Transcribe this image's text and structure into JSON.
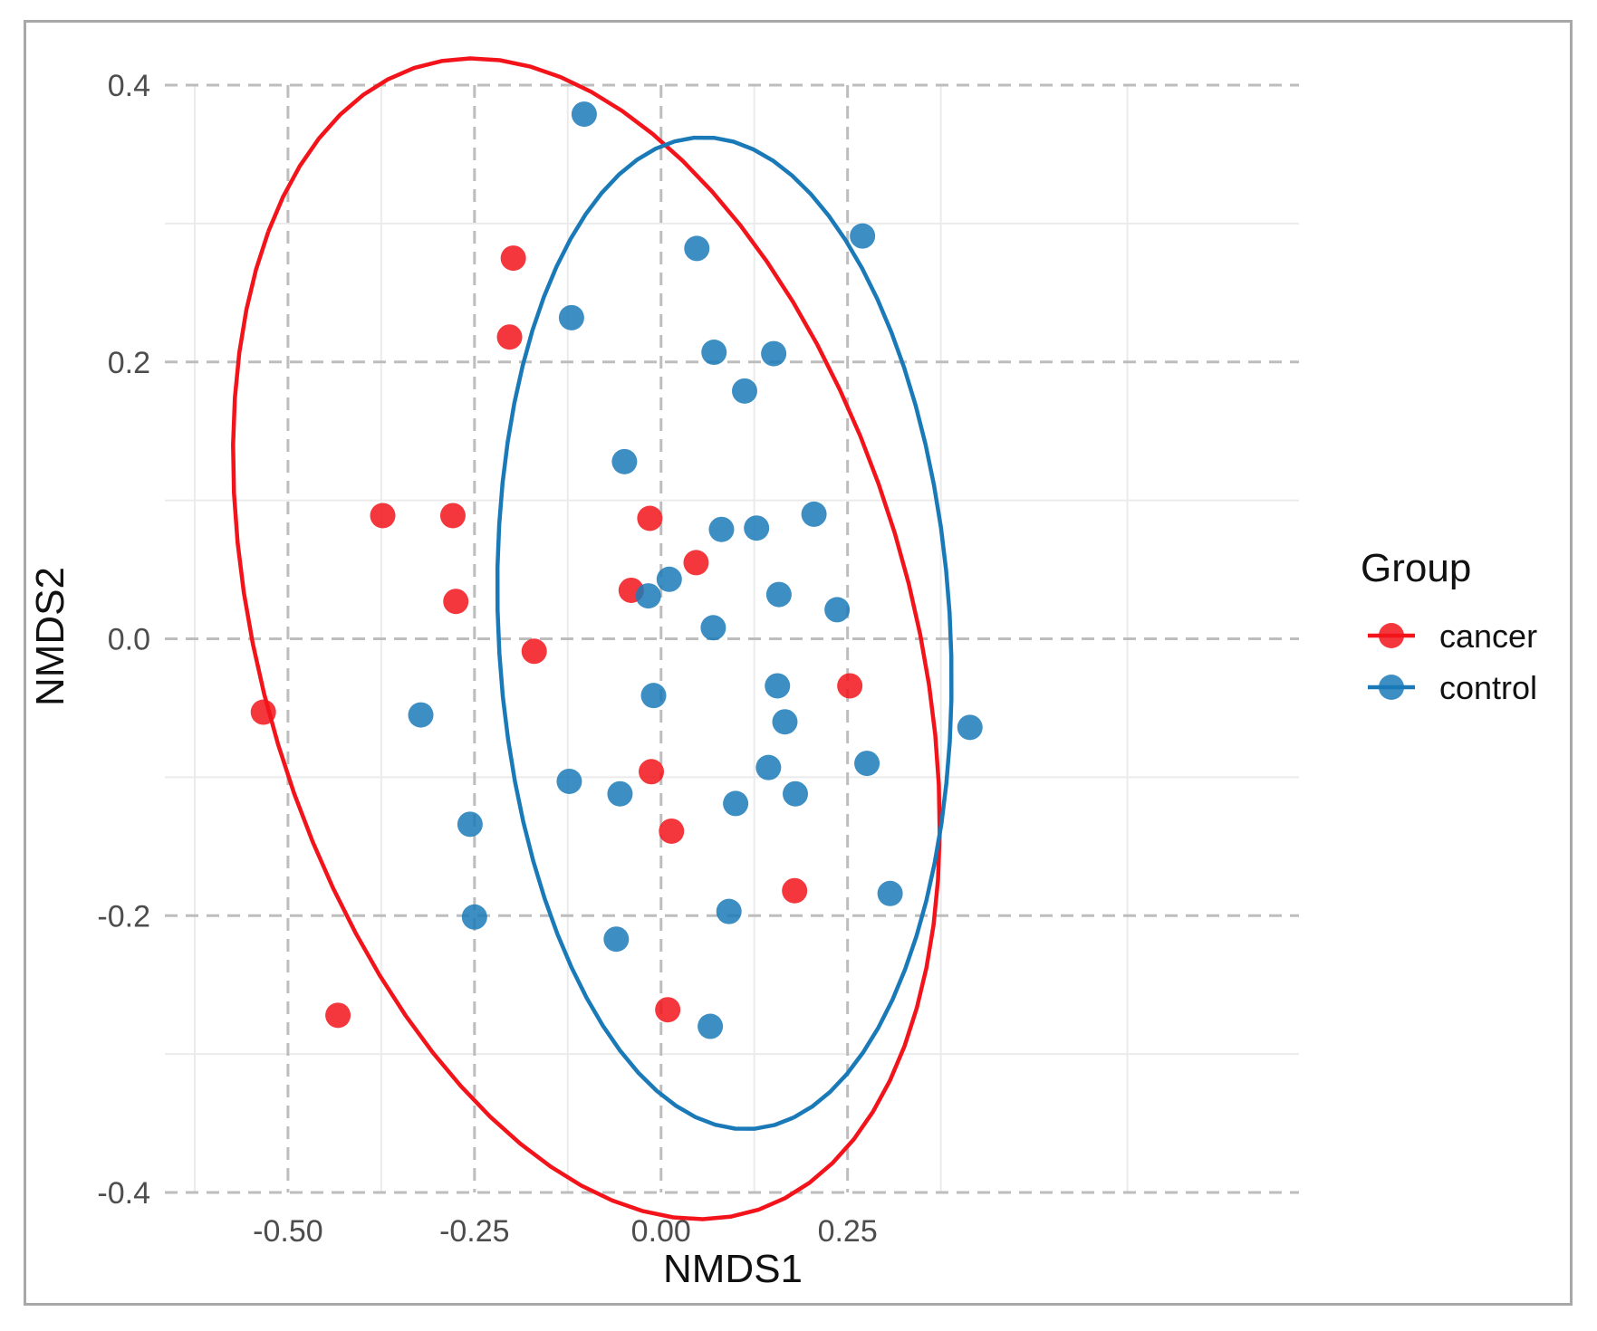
{
  "chart_data": {
    "type": "scatter",
    "title": "",
    "xlabel": "NMDS1",
    "ylabel": "NMDS2",
    "xlim": [
      -0.665,
      0.855
    ],
    "ylim": [
      -0.4,
      0.4
    ],
    "grid": true,
    "legend_title": "Group",
    "legend_position": "right",
    "x_ticks": [
      -0.5,
      -0.25,
      0.0,
      0.25
    ],
    "x_tick_labels": [
      "-0.50",
      "-0.25",
      "0.00",
      "0.25"
    ],
    "y_ticks": [
      0.4,
      0.2,
      0.0,
      -0.2,
      -0.4
    ],
    "y_tick_labels": [
      "0.4",
      "0.2",
      "0.0",
      "-0.2",
      "-0.4"
    ],
    "series": [
      {
        "name": "cancer",
        "color": "#f2141a",
        "points": [
          [
            -0.198,
            0.275
          ],
          [
            -0.203,
            0.218
          ],
          [
            -0.373,
            0.089
          ],
          [
            -0.279,
            0.089
          ],
          [
            -0.275,
            0.027
          ],
          [
            -0.17,
            -0.009
          ],
          [
            -0.533,
            -0.053
          ],
          [
            -0.433,
            -0.272
          ],
          [
            -0.015,
            0.087
          ],
          [
            0.047,
            0.055
          ],
          [
            -0.04,
            0.035
          ],
          [
            -0.013,
            -0.096
          ],
          [
            0.014,
            -0.139
          ],
          [
            0.009,
            -0.268
          ],
          [
            0.179,
            -0.182
          ],
          [
            0.253,
            -0.034
          ]
        ],
        "ellipse": {
          "center": [
            -0.1,
            0.0
          ],
          "semi_axes": [
            0.518,
            0.363
          ],
          "rotation_deg": 145.4
        }
      },
      {
        "name": "control",
        "color": "#1a7ab8",
        "points": [
          [
            -0.103,
            0.379
          ],
          [
            0.27,
            0.291
          ],
          [
            0.048,
            0.282
          ],
          [
            -0.12,
            0.232
          ],
          [
            0.071,
            0.207
          ],
          [
            0.151,
            0.206
          ],
          [
            0.112,
            0.179
          ],
          [
            -0.049,
            0.128
          ],
          [
            0.205,
            0.09
          ],
          [
            0.081,
            0.079
          ],
          [
            0.128,
            0.08
          ],
          [
            0.011,
            0.043
          ],
          [
            -0.017,
            0.031
          ],
          [
            0.158,
            0.032
          ],
          [
            0.236,
            0.021
          ],
          [
            0.07,
            0.008
          ],
          [
            0.156,
            -0.034
          ],
          [
            -0.01,
            -0.041
          ],
          [
            0.166,
            -0.06
          ],
          [
            0.414,
            -0.064
          ],
          [
            -0.322,
            -0.055
          ],
          [
            0.144,
            -0.093
          ],
          [
            0.276,
            -0.09
          ],
          [
            -0.123,
            -0.103
          ],
          [
            -0.055,
            -0.112
          ],
          [
            0.18,
            -0.112
          ],
          [
            0.1,
            -0.119
          ],
          [
            -0.256,
            -0.134
          ],
          [
            0.307,
            -0.184
          ],
          [
            0.091,
            -0.197
          ],
          [
            -0.25,
            -0.201
          ],
          [
            -0.06,
            -0.217
          ],
          [
            0.066,
            -0.28
          ]
        ],
        "ellipse": {
          "center": [
            0.085,
            0.004
          ],
          "semi_axes": [
            0.362,
            0.3
          ],
          "rotation_deg": -75.2
        }
      }
    ]
  }
}
